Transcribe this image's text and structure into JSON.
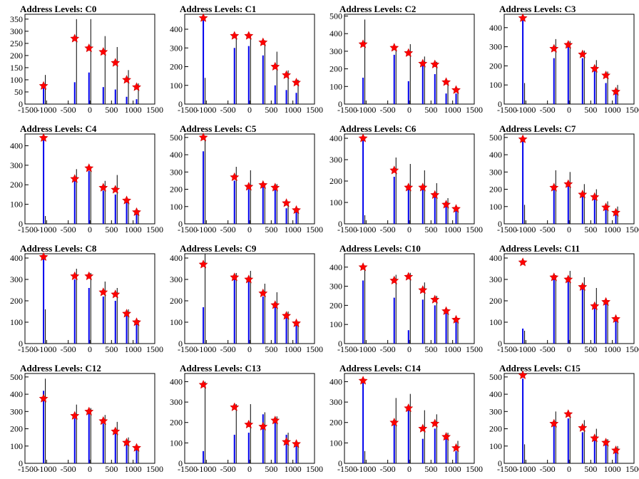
{
  "chart_data": [
    {
      "type": "bar",
      "title": "Address Levels: C0",
      "xlim": [
        -1500,
        1500
      ],
      "ylim": [
        0,
        370
      ],
      "yticks": [
        0,
        50,
        100,
        150,
        200,
        250,
        300,
        350
      ],
      "xticks": [
        -1500,
        -1000,
        -500,
        0,
        500,
        1000,
        1500
      ],
      "spike_x": [
        -1070,
        -350,
        -20,
        310,
        590,
        850,
        1080
      ],
      "blue_heights": [
        80,
        90,
        130,
        70,
        60,
        30,
        20
      ],
      "black_heights": [
        120,
        350,
        350,
        280,
        235,
        140,
        85
      ],
      "star_values": [
        75,
        270,
        230,
        215,
        170,
        100,
        70
      ]
    },
    {
      "type": "bar",
      "title": "Address Levels: C1",
      "xlim": [
        -1500,
        1500
      ],
      "ylim": [
        0,
        480
      ],
      "yticks": [
        0,
        100,
        200,
        300,
        400
      ],
      "xticks": [
        -1500,
        -1000,
        -500,
        0,
        500,
        1000,
        1500
      ],
      "spike_x": [
        -1070,
        -350,
        -20,
        310,
        590,
        850,
        1080
      ],
      "blue_heights": [
        460,
        300,
        310,
        260,
        100,
        75,
        60
      ],
      "black_heights": [
        140,
        370,
        370,
        340,
        280,
        180,
        130
      ],
      "star_values": [
        460,
        365,
        365,
        330,
        200,
        155,
        115
      ]
    },
    {
      "type": "bar",
      "title": "Address Levels: C2",
      "xlim": [
        -1500,
        1500
      ],
      "ylim": [
        0,
        510
      ],
      "yticks": [
        0,
        100,
        200,
        300,
        400,
        500
      ],
      "xticks": [
        -1500,
        -1000,
        -500,
        0,
        500,
        1000,
        1500
      ],
      "spike_x": [
        -1070,
        -350,
        -20,
        310,
        590,
        850,
        1080
      ],
      "blue_heights": [
        150,
        280,
        130,
        240,
        170,
        60,
        60
      ],
      "black_heights": [
        480,
        330,
        340,
        270,
        240,
        130,
        90
      ],
      "star_values": [
        340,
        320,
        290,
        230,
        225,
        125,
        80
      ]
    },
    {
      "type": "bar",
      "title": "Address Levels: C3",
      "xlim": [
        -1500,
        1500
      ],
      "ylim": [
        0,
        470
      ],
      "yticks": [
        0,
        100,
        200,
        300,
        400
      ],
      "xticks": [
        -1500,
        -1000,
        -500,
        0,
        500,
        1000,
        1500
      ],
      "spike_x": [
        -1070,
        -350,
        -20,
        310,
        590,
        850,
        1080
      ],
      "blue_heights": [
        450,
        240,
        300,
        240,
        200,
        110,
        60
      ],
      "black_heights": [
        110,
        340,
        330,
        280,
        230,
        170,
        100
      ],
      "star_values": [
        450,
        290,
        310,
        260,
        185,
        150,
        65
      ]
    },
    {
      "type": "bar",
      "title": "Address Levels: C4",
      "xlim": [
        -1500,
        1500
      ],
      "ylim": [
        0,
        460
      ],
      "yticks": [
        0,
        100,
        200,
        300,
        400
      ],
      "xticks": [
        -1500,
        -1000,
        -500,
        0,
        500,
        1000,
        1500
      ],
      "spike_x": [
        -1070,
        -350,
        -20,
        310,
        590,
        850,
        1080
      ],
      "blue_heights": [
        440,
        230,
        270,
        170,
        150,
        120,
        60
      ],
      "black_heights": [
        40,
        280,
        290,
        220,
        250,
        120,
        70
      ],
      "star_values": [
        440,
        230,
        285,
        185,
        175,
        120,
        60
      ]
    },
    {
      "type": "bar",
      "title": "Address Levels: C5",
      "xlim": [
        -1500,
        1500
      ],
      "ylim": [
        0,
        520
      ],
      "yticks": [
        0,
        100,
        200,
        300,
        400,
        500
      ],
      "xticks": [
        -1500,
        -1000,
        -500,
        0,
        500,
        1000,
        1500
      ],
      "spike_x": [
        -1070,
        -350,
        -20,
        310,
        590,
        850,
        1080
      ],
      "blue_heights": [
        420,
        250,
        200,
        220,
        200,
        90,
        80
      ],
      "black_heights": [
        500,
        330,
        310,
        230,
        230,
        130,
        90
      ],
      "star_values": [
        500,
        270,
        215,
        225,
        210,
        120,
        80
      ]
    },
    {
      "type": "bar",
      "title": "Address Levels: C6",
      "xlim": [
        -1500,
        1500
      ],
      "ylim": [
        0,
        420
      ],
      "yticks": [
        0,
        100,
        200,
        300,
        400
      ],
      "xticks": [
        -1500,
        -1000,
        -500,
        0,
        500,
        1000,
        1500
      ],
      "spike_x": [
        -1070,
        -350,
        -20,
        310,
        590,
        850,
        1080
      ],
      "blue_heights": [
        400,
        220,
        170,
        170,
        130,
        90,
        60
      ],
      "black_heights": [
        40,
        310,
        280,
        250,
        190,
        120,
        70
      ],
      "star_values": [
        400,
        250,
        170,
        170,
        135,
        90,
        70
      ]
    },
    {
      "type": "bar",
      "title": "Address Levels: C7",
      "xlim": [
        -1500,
        1500
      ],
      "ylim": [
        0,
        520
      ],
      "yticks": [
        0,
        100,
        200,
        300,
        400,
        500
      ],
      "xticks": [
        -1500,
        -1000,
        -500,
        0,
        500,
        1000,
        1500
      ],
      "spike_x": [
        -1070,
        -350,
        -20,
        310,
        590,
        850,
        1080
      ],
      "blue_heights": [
        490,
        220,
        230,
        170,
        150,
        100,
        60
      ],
      "black_heights": [
        110,
        310,
        300,
        230,
        200,
        130,
        100
      ],
      "star_values": [
        490,
        210,
        230,
        170,
        155,
        95,
        65
      ]
    },
    {
      "type": "bar",
      "title": "Address Levels: C8",
      "xlim": [
        -1500,
        1500
      ],
      "ylim": [
        0,
        420
      ],
      "yticks": [
        0,
        100,
        200,
        300,
        400
      ],
      "xticks": [
        -1500,
        -1000,
        -500,
        0,
        500,
        1000,
        1500
      ],
      "spike_x": [
        -1070,
        -350,
        -20,
        310,
        590,
        850,
        1080
      ],
      "blue_heights": [
        400,
        300,
        260,
        220,
        200,
        130,
        100
      ],
      "black_heights": [
        160,
        350,
        330,
        290,
        260,
        160,
        110
      ],
      "star_values": [
        405,
        315,
        315,
        240,
        230,
        140,
        100
      ]
    },
    {
      "type": "bar",
      "title": "Address Levels: C9",
      "xlim": [
        -1500,
        1500
      ],
      "ylim": [
        0,
        420
      ],
      "yticks": [
        0,
        100,
        200,
        300,
        400
      ],
      "xticks": [
        -1500,
        -1000,
        -500,
        0,
        500,
        1000,
        1500
      ],
      "spike_x": [
        -1070,
        -350,
        -20,
        310,
        590,
        850,
        1080
      ],
      "blue_heights": [
        170,
        300,
        300,
        220,
        180,
        120,
        90
      ],
      "black_heights": [
        420,
        330,
        340,
        280,
        240,
        150,
        100
      ],
      "star_values": [
        370,
        310,
        300,
        235,
        180,
        130,
        95
      ]
    },
    {
      "type": "bar",
      "title": "Address Levels: C10",
      "xlim": [
        -1500,
        1500
      ],
      "ylim": [
        0,
        470
      ],
      "yticks": [
        0,
        100,
        200,
        300,
        400
      ],
      "xticks": [
        -1500,
        -1000,
        -500,
        0,
        500,
        1000,
        1500
      ],
      "spike_x": [
        -1070,
        -350,
        -20,
        310,
        590,
        850,
        1080
      ],
      "blue_heights": [
        330,
        240,
        70,
        230,
        200,
        170,
        120
      ],
      "black_heights": [
        400,
        360,
        370,
        320,
        250,
        180,
        130
      ],
      "star_values": [
        400,
        330,
        350,
        280,
        230,
        170,
        125
      ]
    },
    {
      "type": "bar",
      "title": "Address Levels: C11",
      "xlim": [
        -1500,
        1500
      ],
      "ylim": [
        0,
        420
      ],
      "yticks": [
        0,
        100,
        200,
        300,
        400
      ],
      "xticks": [
        -1500,
        -1000,
        -500,
        0,
        500,
        1000,
        1500
      ],
      "spike_x": [
        -1070,
        -350,
        -20,
        310,
        590,
        850,
        1080
      ],
      "blue_heights": [
        70,
        300,
        300,
        260,
        180,
        190,
        110
      ],
      "black_heights": [
        60,
        320,
        340,
        310,
        260,
        200,
        120
      ],
      "star_values": [
        380,
        310,
        300,
        265,
        175,
        195,
        115
      ]
    },
    {
      "type": "bar",
      "title": "Address Levels: C12",
      "xlim": [
        -1500,
        1500
      ],
      "ylim": [
        0,
        520
      ],
      "yticks": [
        0,
        100,
        200,
        300,
        400,
        500
      ],
      "xticks": [
        -1500,
        -1000,
        -500,
        0,
        500,
        1000,
        1500
      ],
      "spike_x": [
        -1070,
        -350,
        -20,
        310,
        590,
        850,
        1080
      ],
      "blue_heights": [
        420,
        260,
        300,
        230,
        180,
        110,
        80
      ],
      "black_heights": [
        490,
        340,
        320,
        280,
        240,
        150,
        100
      ],
      "star_values": [
        375,
        275,
        300,
        245,
        185,
        120,
        90
      ]
    },
    {
      "type": "bar",
      "title": "Address Levels: C13",
      "xlim": [
        -1500,
        1500
      ],
      "ylim": [
        0,
        440
      ],
      "yticks": [
        0,
        100,
        200,
        300,
        400
      ],
      "xticks": [
        -1500,
        -1000,
        -500,
        0,
        500,
        1000,
        1500
      ],
      "spike_x": [
        -1070,
        -350,
        -20,
        310,
        590,
        850,
        1080
      ],
      "blue_heights": [
        60,
        140,
        150,
        240,
        200,
        140,
        90
      ],
      "black_heights": [
        400,
        290,
        290,
        250,
        230,
        150,
        100
      ],
      "star_values": [
        385,
        275,
        190,
        180,
        210,
        105,
        95
      ]
    },
    {
      "type": "bar",
      "title": "Address Levels: C14",
      "xlim": [
        -1500,
        1500
      ],
      "ylim": [
        0,
        440
      ],
      "yticks": [
        0,
        100,
        200,
        300,
        400
      ],
      "xticks": [
        -1500,
        -1000,
        -500,
        0,
        500,
        1000,
        1500
      ],
      "spike_x": [
        -1070,
        -350,
        -20,
        310,
        590,
        850,
        1080
      ],
      "blue_heights": [
        400,
        190,
        270,
        120,
        170,
        140,
        60
      ],
      "black_heights": [
        60,
        320,
        340,
        260,
        240,
        150,
        110
      ],
      "star_values": [
        405,
        200,
        270,
        170,
        195,
        130,
        75
      ]
    },
    {
      "type": "bar",
      "title": "Address Levels: C15",
      "xlim": [
        -1500,
        1500
      ],
      "ylim": [
        0,
        520
      ],
      "yticks": [
        0,
        100,
        200,
        300,
        400,
        500
      ],
      "xticks": [
        -1500,
        -1000,
        -500,
        0,
        500,
        1000,
        1500
      ],
      "spike_x": [
        -1070,
        -350,
        -20,
        310,
        590,
        850,
        1080
      ],
      "blue_heights": [
        490,
        240,
        260,
        180,
        160,
        120,
        80
      ],
      "black_heights": [
        110,
        300,
        290,
        250,
        200,
        140,
        100
      ],
      "star_values": [
        510,
        230,
        285,
        205,
        145,
        120,
        75
      ]
    }
  ],
  "colors": {
    "blue_series": "#0000ee",
    "black_series": "#000000",
    "star": "#ff0000"
  }
}
